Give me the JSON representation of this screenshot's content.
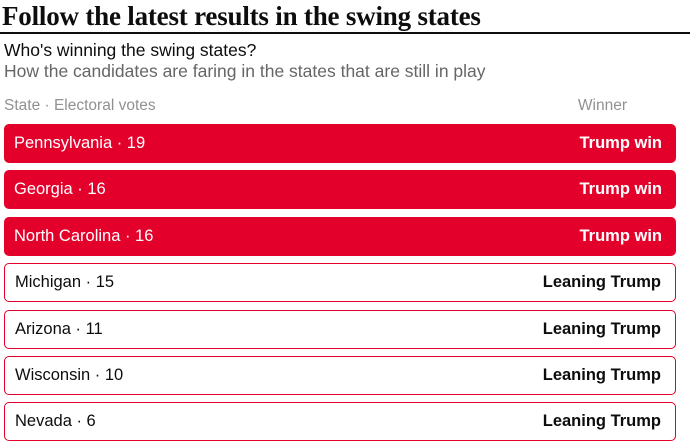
{
  "header": {
    "title": "Follow the latest results in the swing states"
  },
  "chart_data": {
    "type": "table",
    "title": "Who's winning the swing states?",
    "subtitle": "How the candidates are faring in the states that are still in play",
    "columns": [
      "State · Electoral votes",
      "Winner"
    ],
    "rows": [
      {
        "state": "Pennsylvania",
        "electoral_votes": 19,
        "winner": "Trump win",
        "status": "win"
      },
      {
        "state": "Georgia",
        "electoral_votes": 16,
        "winner": "Trump win",
        "status": "win"
      },
      {
        "state": "North Carolina",
        "electoral_votes": 16,
        "winner": "Trump win",
        "status": "win"
      },
      {
        "state": "Michigan",
        "electoral_votes": 15,
        "winner": "Leaning Trump",
        "status": "leaning"
      },
      {
        "state": "Arizona",
        "electoral_votes": 11,
        "winner": "Leaning Trump",
        "status": "leaning"
      },
      {
        "state": "Wisconsin",
        "electoral_votes": 10,
        "winner": "Leaning Trump",
        "status": "leaning"
      },
      {
        "state": "Nevada",
        "electoral_votes": 6,
        "winner": "Leaning Trump",
        "status": "leaning"
      }
    ]
  },
  "colors": {
    "red": "#E3002B",
    "ink": "#0D0D0D",
    "muted": "#666666",
    "column_header": "#919191",
    "win_text": "#FFFFFF"
  }
}
